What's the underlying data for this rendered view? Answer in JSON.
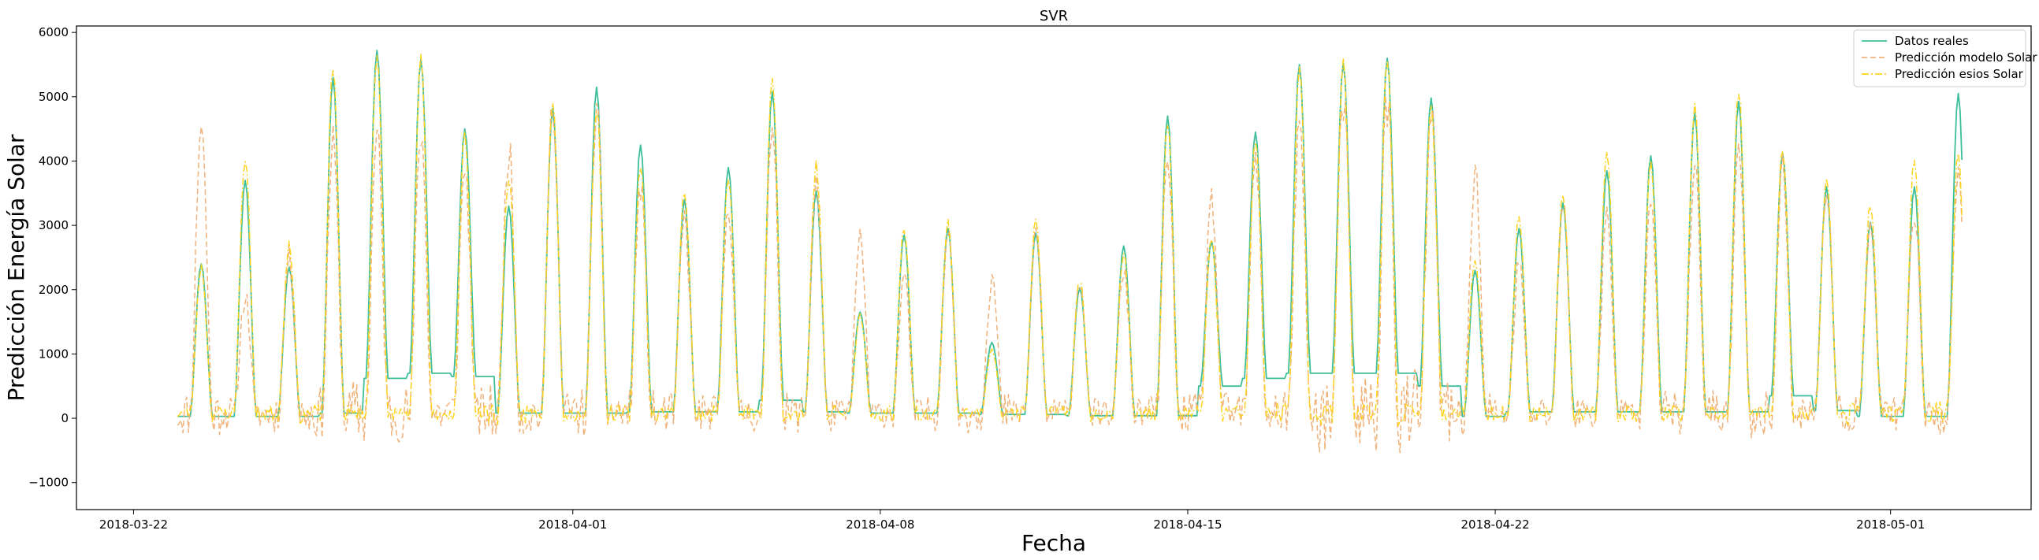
{
  "chart_data": {
    "type": "line",
    "title": "SVR",
    "xlabel": "Fecha",
    "ylabel": "Predicción Energía Solar",
    "x_ticks": [
      "2018-03-22",
      "2018-04-01",
      "2018-04-08",
      "2018-04-15",
      "2018-04-22",
      "2018-05-01"
    ],
    "y_ticks": [
      -1000,
      0,
      1000,
      2000,
      3000,
      4000,
      5000,
      6000
    ],
    "xlim_days": [
      -1.3,
      43.2
    ],
    "ylim": [
      -1420,
      6100
    ],
    "legend_position": "top-right",
    "x_start_date": "2018-03-22",
    "hourly_profile_hours": [
      0,
      1,
      2,
      3,
      4,
      5,
      6,
      7,
      8,
      9,
      10,
      11,
      12,
      13,
      14,
      15,
      16,
      17,
      18,
      19,
      20,
      21,
      22,
      23
    ],
    "series": [
      {
        "name": "Datos reales",
        "color": "#3cbf9a",
        "dash": "solid",
        "first_day": 23,
        "daily_peak": [
          2400,
          3700,
          2350,
          5300,
          5720,
          5580,
          4500,
          3300,
          4820,
          5150,
          4250,
          3400,
          3900,
          5080,
          3530,
          1650,
          2850,
          2950,
          1180,
          2880,
          2030,
          2680,
          4700,
          2750,
          4450,
          5500,
          5520,
          5600,
          4980,
          2300,
          2950,
          3350,
          3850,
          4080,
          4750,
          4930,
          4120,
          3600,
          3050,
          3600,
          5050
        ],
        "night_base": [
          30,
          30,
          30,
          80,
          620,
          700,
          650,
          80,
          80,
          80,
          100,
          100,
          100,
          280,
          100,
          80,
          80,
          80,
          60,
          60,
          40,
          40,
          40,
          500,
          620,
          700,
          700,
          700,
          500,
          30,
          100,
          100,
          100,
          100,
          100,
          100,
          350,
          120,
          30,
          30,
          30
        ],
        "night_baseline": 0,
        "last_day_frac_hours": 15
      },
      {
        "name": "Predicción modelo Solar",
        "color": "#f0b27a",
        "dash": "dashed",
        "first_day": 23,
        "daily_peak": [
          4600,
          1900,
          2500,
          4300,
          4400,
          4450,
          3900,
          4200,
          4900,
          4800,
          3600,
          3100,
          3300,
          4600,
          3700,
          2800,
          2200,
          2950,
          2200,
          2900,
          2150,
          2300,
          4000,
          3400,
          4000,
          4550,
          4950,
          4950,
          4650,
          3850,
          2400,
          3350,
          3150,
          3550,
          3900,
          4250,
          3900,
          3650,
          3000,
          3200,
          3900
        ],
        "noise_amp": [
          400,
          300,
          350,
          450,
          600,
          500,
          450,
          500,
          400,
          450,
          400,
          350,
          300,
          350,
          350,
          250,
          250,
          300,
          350,
          250,
          250,
          250,
          350,
          350,
          400,
          500,
          700,
          800,
          800,
          400,
          300,
          300,
          300,
          400,
          400,
          450,
          400,
          350,
          350,
          300,
          450
        ],
        "seed": 11,
        "last_day_frac_hours": 15
      },
      {
        "name": "Predicción esios Solar",
        "color": "#ffd21f",
        "dash": "dashdot",
        "first_day": 23,
        "daily_peak": [
          2350,
          4050,
          2720,
          5450,
          5680,
          5600,
          4400,
          3800,
          4950,
          4850,
          3950,
          3550,
          3750,
          5320,
          3950,
          1600,
          3000,
          3050,
          1100,
          3100,
          2150,
          2600,
          4550,
          2780,
          4300,
          5450,
          5580,
          5620,
          4850,
          2500,
          3150,
          3500,
          4150,
          3950,
          4840,
          5100,
          4200,
          3700,
          3300,
          4050,
          4100
        ],
        "noise_amp": [
          120,
          120,
          150,
          150,
          120,
          120,
          120,
          200,
          120,
          150,
          150,
          120,
          150,
          120,
          150,
          100,
          150,
          120,
          80,
          120,
          120,
          120,
          120,
          120,
          150,
          200,
          200,
          200,
          150,
          120,
          120,
          120,
          120,
          150,
          150,
          150,
          120,
          120,
          200,
          180,
          200
        ],
        "seed": 23,
        "last_day_frac_hours": 15
      }
    ]
  }
}
